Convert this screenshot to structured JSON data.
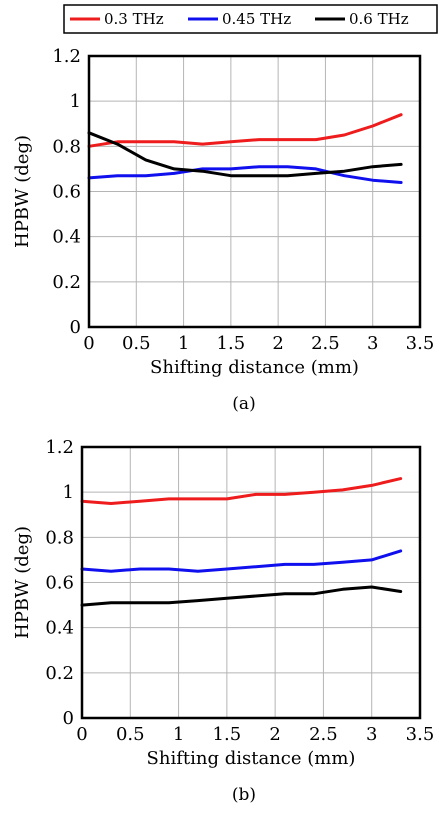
{
  "legend": {
    "entries": [
      {
        "label": "0.3  THz",
        "color": "#ee1c1c"
      },
      {
        "label": "0.45 THz",
        "color": "#1010ee"
      },
      {
        "label": "0.6  THz",
        "color": "#000000"
      }
    ]
  },
  "chart_data": [
    {
      "type": "line",
      "caption": "(a)",
      "xlabel": "Shifting distance (mm)",
      "ylabel": "HPBW (deg)",
      "xlim": [
        0,
        3.5
      ],
      "ylim": [
        0,
        1.2
      ],
      "xticks": [
        "0",
        "0.5",
        "1",
        "1.5",
        "2",
        "2.5",
        "3",
        "3.5"
      ],
      "yticks": [
        "0",
        "0.2",
        "0.4",
        "0.6",
        "0.8",
        "1",
        "1.2"
      ],
      "grid": true,
      "series": [
        {
          "name": "0.3  THz",
          "color": "#ee1c1c",
          "x": [
            0,
            0.3,
            0.6,
            0.9,
            1.2,
            1.5,
            1.8,
            2.1,
            2.4,
            2.7,
            3.0,
            3.3
          ],
          "y": [
            0.8,
            0.82,
            0.82,
            0.82,
            0.81,
            0.82,
            0.83,
            0.83,
            0.83,
            0.85,
            0.89,
            0.94
          ]
        },
        {
          "name": "0.45 THz",
          "color": "#1010ee",
          "x": [
            0,
            0.3,
            0.6,
            0.9,
            1.2,
            1.5,
            1.8,
            2.1,
            2.4,
            2.7,
            3.0,
            3.3
          ],
          "y": [
            0.66,
            0.67,
            0.67,
            0.68,
            0.7,
            0.7,
            0.71,
            0.71,
            0.7,
            0.67,
            0.65,
            0.64
          ]
        },
        {
          "name": "0.6  THz",
          "color": "#000000",
          "x": [
            0,
            0.3,
            0.6,
            0.9,
            1.2,
            1.5,
            1.8,
            2.1,
            2.4,
            2.7,
            3.0,
            3.3
          ],
          "y": [
            0.86,
            0.81,
            0.74,
            0.7,
            0.69,
            0.67,
            0.67,
            0.67,
            0.68,
            0.69,
            0.71,
            0.72
          ]
        }
      ]
    },
    {
      "type": "line",
      "caption": "(b)",
      "xlabel": "Shifting distance (mm)",
      "ylabel": "HPBW (deg)",
      "xlim": [
        0,
        3.5
      ],
      "ylim": [
        0,
        1.2
      ],
      "xticks": [
        "0",
        "0.5",
        "1",
        "1.5",
        "2",
        "2.5",
        "3",
        "3.5"
      ],
      "yticks": [
        "0",
        "0.2",
        "0.4",
        "0.6",
        "0.8",
        "1",
        "1.2"
      ],
      "grid": true,
      "series": [
        {
          "name": "0.3  THz",
          "color": "#ee1c1c",
          "x": [
            0,
            0.3,
            0.6,
            0.9,
            1.2,
            1.5,
            1.8,
            2.1,
            2.4,
            2.7,
            3.0,
            3.3
          ],
          "y": [
            0.96,
            0.95,
            0.96,
            0.97,
            0.97,
            0.97,
            0.99,
            0.99,
            1.0,
            1.01,
            1.03,
            1.06
          ]
        },
        {
          "name": "0.45 THz",
          "color": "#1010ee",
          "x": [
            0,
            0.3,
            0.6,
            0.9,
            1.2,
            1.5,
            1.8,
            2.1,
            2.4,
            2.7,
            3.0,
            3.3
          ],
          "y": [
            0.66,
            0.65,
            0.66,
            0.66,
            0.65,
            0.66,
            0.67,
            0.68,
            0.68,
            0.69,
            0.7,
            0.74
          ]
        },
        {
          "name": "0.6  THz",
          "color": "#000000",
          "x": [
            0,
            0.3,
            0.6,
            0.9,
            1.2,
            1.5,
            1.8,
            2.1,
            2.4,
            2.7,
            3.0,
            3.3
          ],
          "y": [
            0.5,
            0.51,
            0.51,
            0.51,
            0.52,
            0.53,
            0.54,
            0.55,
            0.55,
            0.57,
            0.58,
            0.56
          ]
        }
      ]
    }
  ]
}
